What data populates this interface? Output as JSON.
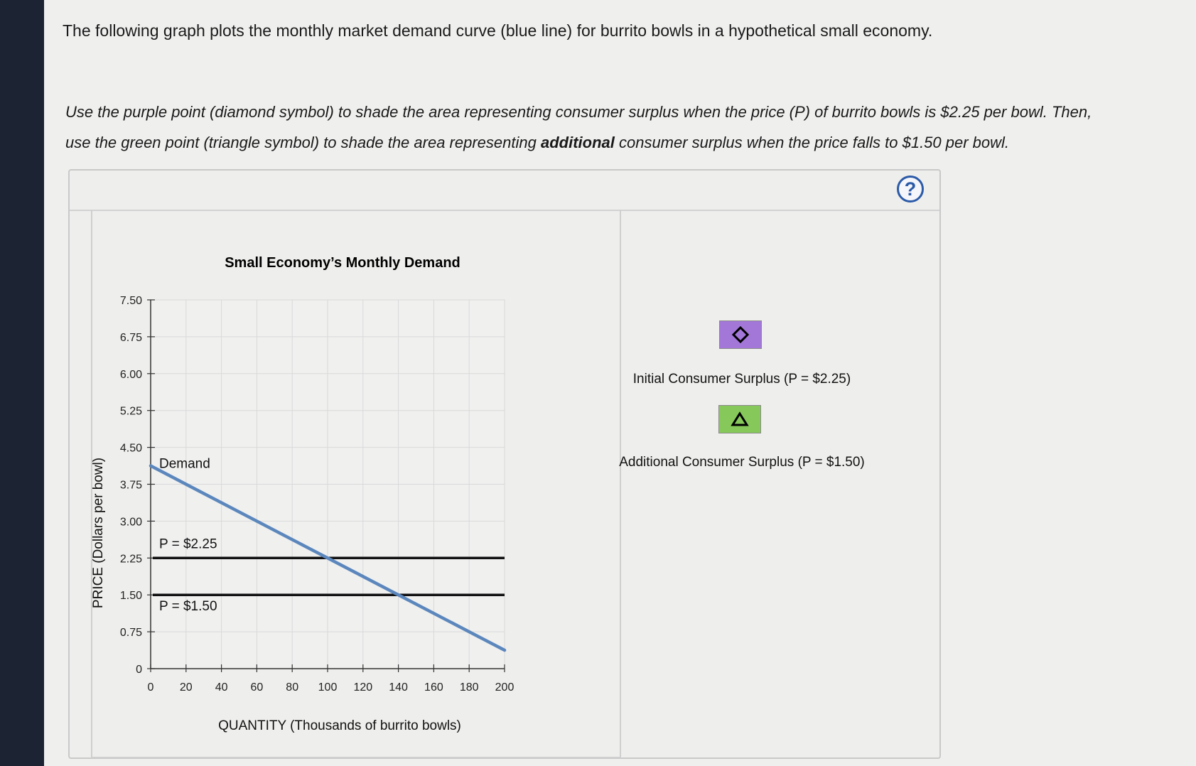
{
  "intro_text": "The following graph plots the monthly market demand curve (blue line) for burrito bowls in a hypothetical small economy.",
  "instructions": {
    "part1": "Use the purple point (diamond symbol) to shade the area representing consumer surplus when the price (P) of burrito bowls is $2.25 per bowl. Then,",
    "part2a": "use the green point (triangle symbol) to shade the area representing ",
    "part2_bold": "additional",
    "part2b": " consumer surplus when the price falls to $1.50 per bowl."
  },
  "help_label": "?",
  "tools": [
    {
      "label": "Initial Consumer Surplus (P = $2.25)",
      "symbol": "diamond-icon",
      "color": "#a277d8"
    },
    {
      "label": "Additional Consumer Surplus (P = $1.50)",
      "symbol": "triangle-icon",
      "color": "#86c95a"
    }
  ],
  "chart_data": {
    "type": "line",
    "title": "Small Economy’s Monthly Demand",
    "xlabel": "QUANTITY (Thousands of burrito bowls)",
    "ylabel": "PRICE (Dollars per bowl)",
    "xlim": [
      0,
      200
    ],
    "ylim": [
      0,
      7.5
    ],
    "x_ticks": [
      0,
      20,
      40,
      60,
      80,
      100,
      120,
      140,
      160,
      180,
      200
    ],
    "y_ticks": [
      "0",
      "0.75",
      "1.50",
      "2.25",
      "3.00",
      "3.75",
      "4.50",
      "5.25",
      "6.00",
      "6.75",
      "7.50"
    ],
    "y_tick_values": [
      0,
      0.75,
      1.5,
      2.25,
      3.0,
      3.75,
      4.5,
      5.25,
      6.0,
      6.75,
      7.5
    ],
    "grid": true,
    "series": [
      {
        "name": "Demand",
        "color": "#5b87bd",
        "x": [
          0,
          200
        ],
        "y": [
          4.125,
          0.375
        ]
      }
    ],
    "hlines": [
      {
        "label": "P = $2.25",
        "y": 2.25,
        "color": "#111111"
      },
      {
        "label": "P = $1.50",
        "y": 1.5,
        "color": "#111111"
      }
    ]
  }
}
